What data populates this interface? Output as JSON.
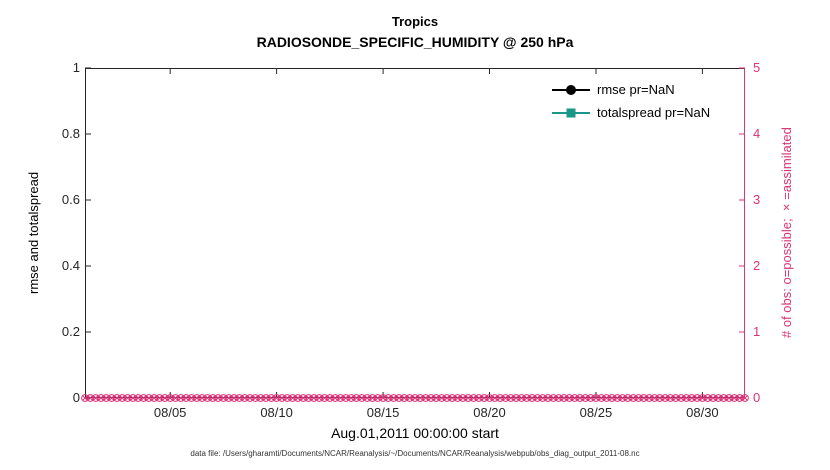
{
  "footer": {
    "text": "data file: /Users/gharamti/Documents/NCAR/Reanalysis/~/Documents/NCAR/Reanalysis/webpub/obs_diag_output_2011-08.nc"
  },
  "chart_data": {
    "type": "line",
    "title": "Tropics",
    "subtitle": "RADIOSONDE_SPECIFIC_HUMIDITY @ 250 hPa",
    "xlabel": "Aug.01,2011 00:00:00 start",
    "grid": false,
    "x_axis": {
      "start": "Aug.01,2011 00:00:00",
      "span_days": 31,
      "tick_labels": [
        "08/05",
        "08/10",
        "08/15",
        "08/20",
        "08/25",
        "08/30"
      ],
      "tick_days": [
        5,
        10,
        15,
        20,
        25,
        30
      ]
    },
    "left_axis": {
      "label": "rmse and totalspread",
      "min": 0,
      "max": 1,
      "ticks": [
        0,
        0.2,
        0.4,
        0.6,
        0.8,
        1
      ],
      "tick_labels": [
        "0",
        "0.2",
        "0.4",
        "0.6",
        "0.8",
        "1"
      ],
      "color": "#000000"
    },
    "right_axis": {
      "label": "# of obs: o=possible; ×=assimilated",
      "min": 0,
      "max": 5,
      "ticks": [
        0,
        1,
        2,
        3,
        4,
        5
      ],
      "tick_labels": [
        "0",
        "1",
        "2",
        "3",
        "4",
        "5"
      ],
      "color": "#dd3377"
    },
    "legend": {
      "position": "top-right",
      "box": false,
      "entries": [
        {
          "label": "rmse pr=NaN",
          "color": "#000000",
          "marker": "circle-filled"
        },
        {
          "label": "totalspread pr=NaN",
          "color": "#1a9788",
          "marker": "square-filled"
        }
      ]
    },
    "series": [
      {
        "name": "rmse",
        "axis": "left",
        "color": "#000000",
        "marker": "circle",
        "values": null,
        "note": "pr=NaN - no curve plotted"
      },
      {
        "name": "totalspread",
        "axis": "left",
        "color": "#1a9788",
        "marker": "square",
        "values": null,
        "note": "pr=NaN - no curve plotted"
      },
      {
        "name": "obs possible (o)",
        "axis": "right",
        "color": "#dd3377",
        "marker": "o",
        "n_points": 125,
        "constant_value": 0
      },
      {
        "name": "obs assimilated (x)",
        "axis": "right",
        "color": "#dd3377",
        "marker": "x",
        "n_points": 125,
        "constant_value": 0
      }
    ]
  }
}
